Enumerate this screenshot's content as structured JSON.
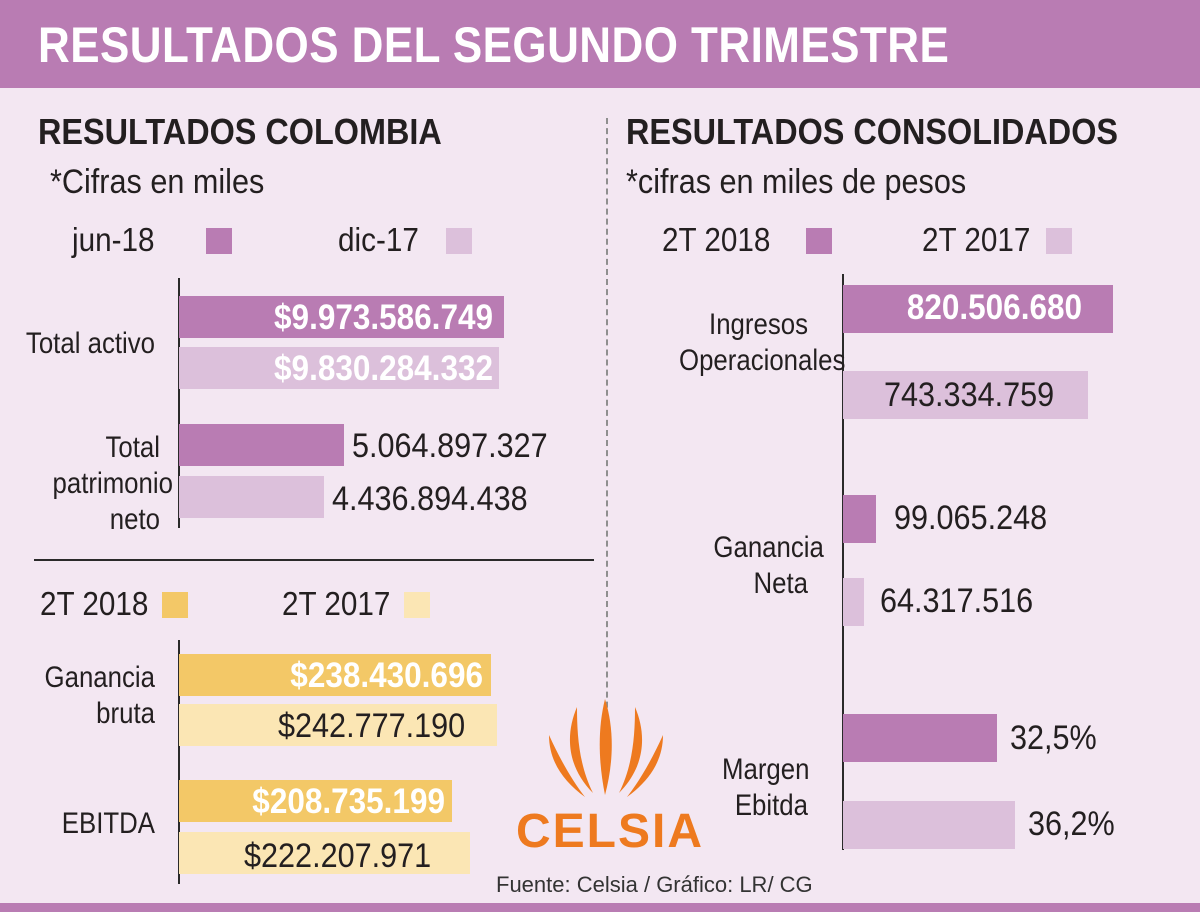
{
  "title": "RESULTADOS DEL SEGUNDO TRIMESTRE",
  "source": "Fuente: Celsia / Gráfico: LR/ CG",
  "logo": {
    "text": "CELSIA",
    "color": "#ee7a1f"
  },
  "colors": {
    "header_band": "#b97cb3",
    "background": "#f3e7f2",
    "purple_dark": "#b97cb3",
    "purple_light": "#dcc0db",
    "yellow_dark": "#f3c867",
    "yellow_light": "#fbe6b4"
  },
  "chart_data": [
    {
      "type": "bar",
      "orientation": "horizontal",
      "title": "RESULTADOS COLOMBIA",
      "subtitle": "*Cifras en miles",
      "categories": [
        "Total activo",
        "Total patrimonio neto"
      ],
      "series": [
        {
          "name": "jun-18",
          "color": "#b97cb3",
          "values": [
            9973586749,
            5064897327
          ],
          "labels": [
            "$9.973.586.749",
            "5.064.897.327"
          ]
        },
        {
          "name": "dic-17",
          "color": "#dcc0db",
          "values": [
            9830284332,
            4436894438
          ],
          "labels": [
            "$9.830.284.332",
            "4.436.894.438"
          ]
        }
      ],
      "xlim": [
        0,
        10000000000
      ],
      "grid": false
    },
    {
      "type": "bar",
      "orientation": "horizontal",
      "categories": [
        "Ganancia bruta",
        "EBITDA"
      ],
      "series": [
        {
          "name": "2T 2018",
          "color": "#f3c867",
          "values": [
            238430696,
            208735199
          ],
          "labels": [
            "$238.430.696",
            "$208.735.199"
          ]
        },
        {
          "name": "2T 2017",
          "color": "#fbe6b4",
          "values": [
            242777190,
            222207971
          ],
          "labels": [
            "$242.777.190",
            "$222.207.971"
          ]
        }
      ],
      "xlim": [
        0,
        250000000
      ],
      "grid": false
    },
    {
      "type": "bar",
      "orientation": "horizontal",
      "title": "RESULTADOS CONSOLIDADOS",
      "subtitle": "*cifras en miles de pesos",
      "categories": [
        "Ingresos Operacionales",
        "Ganancia Neta",
        "Margen Ebitda"
      ],
      "series": [
        {
          "name": "2T 2018",
          "color": "#b97cb3",
          "values": [
            820506680,
            99065248,
            32.5
          ],
          "labels": [
            "820.506.680",
            "99.065.248",
            "32,5%"
          ]
        },
        {
          "name": "2T 2017",
          "color": "#dcc0db",
          "values": [
            743334759,
            64317516,
            36.2
          ],
          "labels": [
            "743.334.759",
            "64.317.516",
            "36,2%"
          ]
        }
      ],
      "grid": false
    }
  ]
}
